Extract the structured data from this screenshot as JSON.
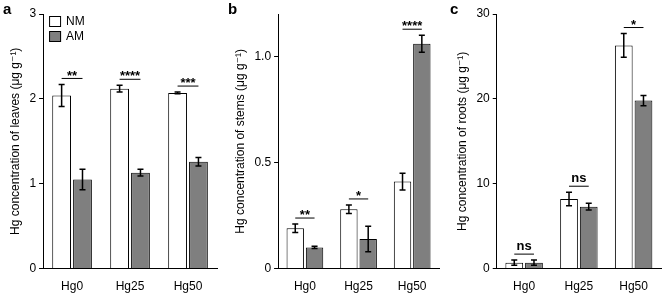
{
  "chart_data": [
    {
      "type": "bar",
      "panel": "a",
      "y_label": "Hg concentration of leaves (μg g⁻¹)",
      "categories": [
        "Hg0",
        "Hg25",
        "Hg50"
      ],
      "series": [
        {
          "name": "NM",
          "color": "#ffffff",
          "values": [
            2.04,
            2.12,
            2.07
          ],
          "errors": [
            0.13,
            0.04,
            0.01
          ]
        },
        {
          "name": "AM",
          "color": "#7f7f7f",
          "values": [
            1.05,
            1.13,
            1.26
          ],
          "errors": [
            0.12,
            0.04,
            0.05
          ]
        }
      ],
      "significance": [
        "**",
        "****",
        "***"
      ],
      "ylim": [
        0,
        3
      ],
      "yticks": [
        0,
        1,
        2,
        3
      ],
      "legend": "upper left",
      "grid": false
    },
    {
      "type": "bar",
      "panel": "b",
      "y_label": "Hg concentration of stems (μg g⁻¹)",
      "categories": [
        "Hg0",
        "Hg25",
        "Hg50"
      ],
      "series": [
        {
          "name": "NM",
          "color": "#ffffff",
          "values": [
            0.19,
            0.28,
            0.41
          ],
          "errors": [
            0.02,
            0.02,
            0.04
          ]
        },
        {
          "name": "AM",
          "color": "#7f7f7f",
          "values": [
            0.1,
            0.14,
            1.06
          ],
          "errors": [
            0.005,
            0.06,
            0.04
          ]
        }
      ],
      "significance": [
        "**",
        "*",
        "****"
      ],
      "ylim": [
        0,
        1.2
      ],
      "yticks": [
        0,
        0.5,
        {
          "value": 1,
          "label": "1.0"
        }
      ],
      "grid": false
    },
    {
      "type": "bar",
      "panel": "c",
      "y_label": "Hg concentration of roots (μg g⁻¹)",
      "categories": [
        "Hg0",
        "Hg25",
        "Hg50"
      ],
      "series": [
        {
          "name": "NM",
          "color": "#ffffff",
          "values": [
            0.7,
            8.2,
            26.3
          ],
          "errors": [
            0.3,
            0.8,
            1.4
          ]
        },
        {
          "name": "AM",
          "color": "#7f7f7f",
          "values": [
            0.7,
            7.3,
            19.8
          ],
          "errors": [
            0.3,
            0.4,
            0.6
          ]
        }
      ],
      "significance": [
        "ns",
        "ns",
        "*"
      ],
      "ylim": [
        0,
        30
      ],
      "yticks": [
        0,
        10,
        20,
        30
      ],
      "grid": false
    }
  ]
}
